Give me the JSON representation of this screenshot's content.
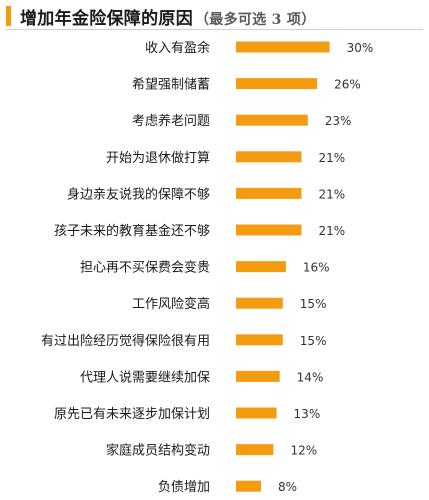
{
  "chart_data": {
    "type": "bar",
    "orientation": "horizontal",
    "title": "增加年金险保障的原因",
    "subtitle": "（最多可选 3 项）",
    "categories": [
      "收入有盈余",
      "希望强制储蓄",
      "考虑养老问题",
      "开始为退休做打算",
      "身边亲友说我的保障不够",
      "孩子未来的教育基金还不够",
      "担心再不买保费会变贵",
      "工作风险变高",
      "有过出险经历觉得保险很有用",
      "代理人说需要继续加保",
      "原先已有未来逐步加保计划",
      "家庭成员结构变动",
      "负债增加"
    ],
    "values": [
      30,
      26,
      23,
      21,
      21,
      21,
      16,
      15,
      15,
      14,
      13,
      12,
      8
    ],
    "value_labels": [
      "30%",
      "26%",
      "23%",
      "21%",
      "21%",
      "21%",
      "16%",
      "15%",
      "15%",
      "14%",
      "13%",
      "12%",
      "8%"
    ],
    "unit": "%",
    "bar_color": "#f39c12",
    "accent_color": "#f39c12",
    "grid": false,
    "legend": "none"
  }
}
